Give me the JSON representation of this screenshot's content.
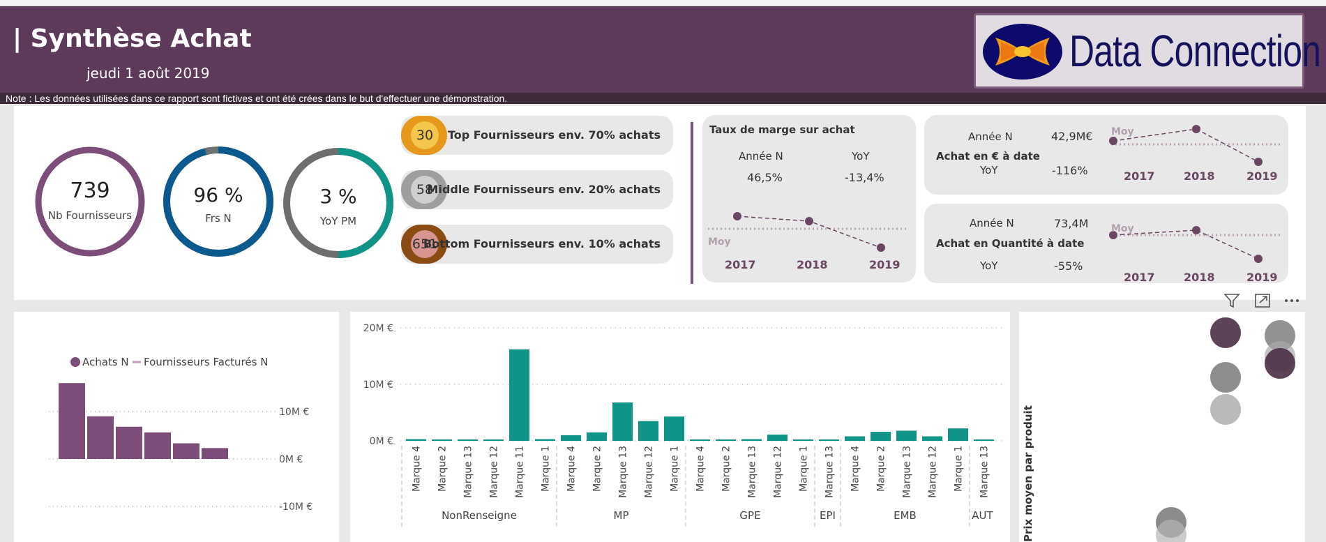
{
  "header": {
    "title": "| Synthèse Achat",
    "date": "jeudi 1 août 2019",
    "logo_text": "Data Connection",
    "note": "Note : Les données utilisées dans ce rapport  sont fictives et ont été crées dans le but d'effectuer une démonstration."
  },
  "kpis": {
    "nb_fournisseurs": {
      "value": "739",
      "label": "Nb Fournisseurs",
      "fraction": 1.0,
      "color": "#7b4d78"
    },
    "frs_n": {
      "value": "96 %",
      "label": "Frs N",
      "fraction": 0.96,
      "color": "#0a5a8f"
    },
    "yoy_pm": {
      "value": "3 %",
      "label": "YoY PM",
      "fraction": 0.5,
      "color": "#0f9487"
    }
  },
  "segments": [
    {
      "count": "30",
      "label": "Top Fournisseurs env. 70% achats",
      "outer": "#e5981a",
      "inner": "#f4c64c"
    },
    {
      "count": "58",
      "label": "Middle Fournisseurs env. 20% achats",
      "outer": "#9e9e9e",
      "inner": "#cfcfcf"
    },
    {
      "count": "651",
      "label": "Bottom Fournisseurs env. 10% achats",
      "outer": "#8a4c12",
      "inner": "#d6958e"
    }
  ],
  "marge_card": {
    "title": "Taux de marge sur achat",
    "col1_label": "Année N",
    "col2_label": "YoY",
    "col1_value": "46,5%",
    "col2_value": "-13,4%",
    "avg_label": "Moy",
    "years": [
      "2017",
      "2018",
      "2019"
    ]
  },
  "achat_eur_card": {
    "label_annee": "Année N",
    "value_annee": "42,9M€",
    "title": "Achat en € à date",
    "label_yoy": "YoY",
    "value_yoy": "-116%",
    "avg_label": "Moy",
    "years": [
      "2017",
      "2018",
      "2019"
    ]
  },
  "achat_qte_card": {
    "label_annee": "Année N",
    "value_annee": "73,4M",
    "title": "Achat en Quantité à date",
    "label_yoy": "YoY",
    "value_yoy": "-55%",
    "avg_label": "Moy",
    "years": [
      "2017",
      "2018",
      "2019"
    ]
  },
  "chart_data": [
    {
      "type": "bar",
      "legend": [
        "Achats N",
        "Fournisseurs Facturés N"
      ],
      "legend_placement": "top",
      "values": [
        16,
        9,
        6.8,
        5.6,
        3.3,
        2.3
      ],
      "ylabels": [
        "10M €",
        "0M €",
        "-10M €"
      ],
      "ylim": [
        -10,
        20
      ],
      "colors": {
        "bar": "#7b4d78",
        "line": "#c79ac2"
      }
    },
    {
      "type": "bar",
      "yticks": [
        "20M €",
        "10M €",
        "0M €"
      ],
      "ylim": [
        0,
        20
      ],
      "groups": [
        {
          "name": "NonRenseigne",
          "labels": [
            "Marque 4",
            "Marque 2",
            "Marque 13",
            "Marque 12",
            "Marque 11",
            "Marque 1"
          ],
          "values": [
            0.3,
            0.2,
            0.2,
            0.2,
            16.2,
            0.3
          ]
        },
        {
          "name": "MP",
          "labels": [
            "Marque 4",
            "Marque 2",
            "Marque 13",
            "Marque 12",
            "Marque 1"
          ],
          "values": [
            1.0,
            1.5,
            6.8,
            3.5,
            4.3
          ]
        },
        {
          "name": "GPE",
          "labels": [
            "Marque 4",
            "Marque 2",
            "Marque 13",
            "Marque 12",
            "Marque 1"
          ],
          "values": [
            0.2,
            0.2,
            0.3,
            1.1,
            0.2
          ]
        },
        {
          "name": "EPI",
          "labels": [
            "Marque 13"
          ],
          "values": [
            0.2
          ]
        },
        {
          "name": "EMB",
          "labels": [
            "Marque 4",
            "Marque 2",
            "Marque 13",
            "Marque 12",
            "Marque 1"
          ],
          "values": [
            0.8,
            1.6,
            1.8,
            0.8,
            2.2
          ]
        },
        {
          "name": "AUT",
          "labels": [
            "Marque 13"
          ],
          "values": [
            0.2
          ]
        }
      ],
      "color": "#0f9487"
    },
    {
      "type": "scatter",
      "ylabel": "Prix moyen par produit"
    }
  ],
  "toolbar": {
    "filter": "filter-icon",
    "focus": "focus-mode-icon",
    "more": "more-options-icon"
  }
}
